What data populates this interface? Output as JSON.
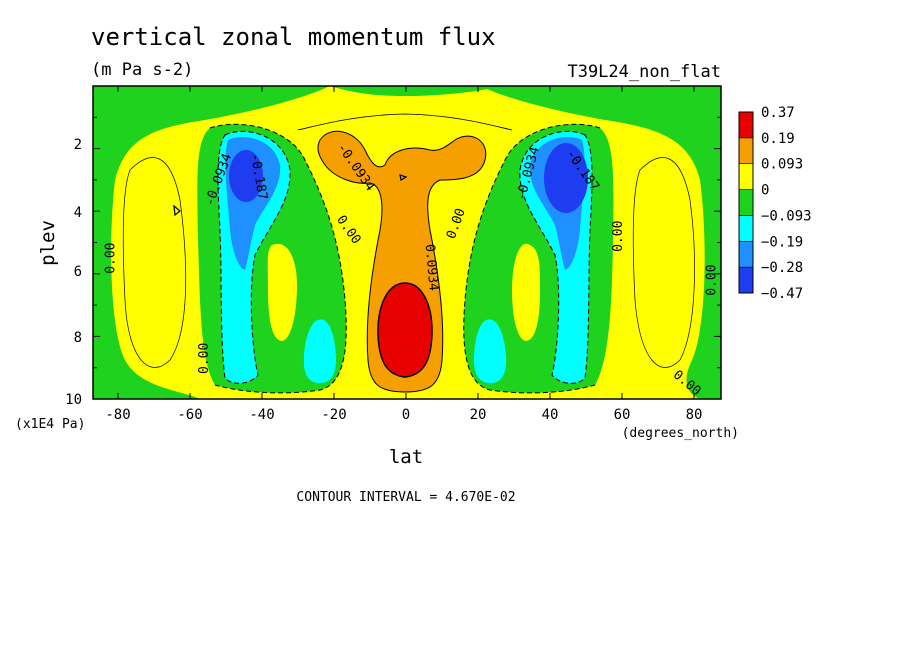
{
  "chart_data": {
    "type": "contour",
    "title": "vertical zonal momentum flux",
    "units": "(m Pa s-2)",
    "run_label": "T39L24_non_flat",
    "xlabel": "lat",
    "x_units": "(degrees_north)",
    "ylabel": "plev",
    "y_units": "(x1E4 Pa)",
    "x_ticks": [
      "-80",
      "-60",
      "-40",
      "-20",
      "0",
      "20",
      "40",
      "60",
      "80"
    ],
    "y_ticks": [
      "2",
      "4",
      "6",
      "8",
      "10"
    ],
    "xlim": [
      -88,
      88
    ],
    "ylim": [
      10,
      0
    ],
    "contour_interval_text": "CONTOUR INTERVAL = 4.670E-02",
    "legend": {
      "labels": [
        "0.37",
        "0.19",
        "0.093",
        "0",
        "−0.093",
        "−0.19",
        "−0.28",
        "−0.47"
      ],
      "colors": [
        "#e60000",
        "#f5a000",
        "#ffff00",
        "#1ed21e",
        "#00ffff",
        "#1e90ff",
        "#1e3cf0"
      ]
    },
    "contour_labels": [
      {
        "text": "0.00",
        "lat": -82,
        "plev": 5.5,
        "rot": -90
      },
      {
        "text": "0.00",
        "lat": -56,
        "plev": 8.7,
        "rot": -90
      },
      {
        "text": "-0.0934",
        "lat": -52,
        "plev": 3.0,
        "rot": -70
      },
      {
        "text": "-0.187",
        "lat": -41,
        "plev": 2.9,
        "rot": 80
      },
      {
        "text": "-0.0934",
        "lat": -14,
        "plev": 2.6,
        "rot": 55
      },
      {
        "text": "0.00",
        "lat": -16,
        "plev": 4.6,
        "rot": 55
      },
      {
        "text": "0.0934",
        "lat": 7,
        "plev": 5.8,
        "rot": 85
      },
      {
        "text": "0.00",
        "lat": 14,
        "plev": 4.4,
        "rot": -70
      },
      {
        "text": "-0.0934",
        "lat": 34,
        "plev": 2.8,
        "rot": -75
      },
      {
        "text": "-0.187",
        "lat": 49,
        "plev": 2.7,
        "rot": 55
      },
      {
        "text": "0.00",
        "lat": 59,
        "plev": 4.8,
        "rot": -90
      },
      {
        "text": "0.00",
        "lat": 85,
        "plev": 6.2,
        "rot": -90
      },
      {
        "text": "0.00",
        "lat": 78,
        "plev": 9.5,
        "rot": 40
      }
    ],
    "features": [
      {
        "name": "equatorial positive core",
        "lat": 0,
        "plev": 7.8,
        "level": "0.37"
      },
      {
        "name": "southern negative core",
        "lat": -45,
        "plev": 3.2,
        "level": "-0.47"
      },
      {
        "name": "northern negative core",
        "lat": 45,
        "plev": 3.2,
        "level": "-0.47"
      }
    ]
  }
}
